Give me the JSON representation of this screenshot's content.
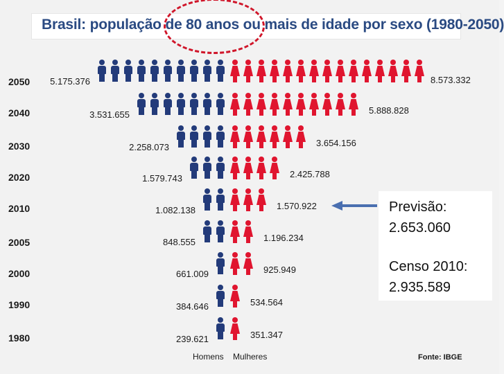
{
  "title": "Brasil: população de 80 anos ou mais de idade por sexo (1980-2050)",
  "legend": {
    "men": "Homens",
    "women": "Mulheres"
  },
  "source": "Fonte: IBGE",
  "panel": {
    "forecast_label": "Previsão:",
    "forecast_value": "2.653.060",
    "census_label": "Censo 2010:",
    "census_value": "2.935.589"
  },
  "colors": {
    "men": "#233b7a",
    "women": "#e0152f",
    "title": "#2a4a82",
    "marker": "#d0162a"
  },
  "chart_data": {
    "type": "bar",
    "title": "Brasil: população de 80 anos ou mais de idade por sexo (1980-2050)",
    "categories": [
      "2050",
      "2040",
      "2030",
      "2020",
      "2010",
      "2005",
      "2000",
      "1990",
      "1980"
    ],
    "series": [
      {
        "name": "Homens",
        "values": [
          5175376,
          3531655,
          2258073,
          1579743,
          1082138,
          848555,
          661009,
          384646,
          239621
        ],
        "labels": [
          "5.175.376",
          "3.531.655",
          "2.258.073",
          "1.579.743",
          "1.082.138",
          "848.555",
          "661.009",
          "384.646",
          "239.621"
        ],
        "icons": [
          10,
          7,
          4,
          3,
          2,
          2,
          1,
          1,
          1
        ]
      },
      {
        "name": "Mulheres",
        "values": [
          8573332,
          5888828,
          3654156,
          2425788,
          1570922,
          1196234,
          925949,
          534564,
          351347
        ],
        "labels": [
          "8.573.332",
          "5.888.828",
          "3.654.156",
          "2.425.788",
          "1.570.922",
          "1.196.234",
          "925.949",
          "534.564",
          "351.347"
        ],
        "icons": [
          15,
          10,
          6,
          4,
          3,
          2,
          2,
          1,
          1
        ]
      }
    ]
  }
}
